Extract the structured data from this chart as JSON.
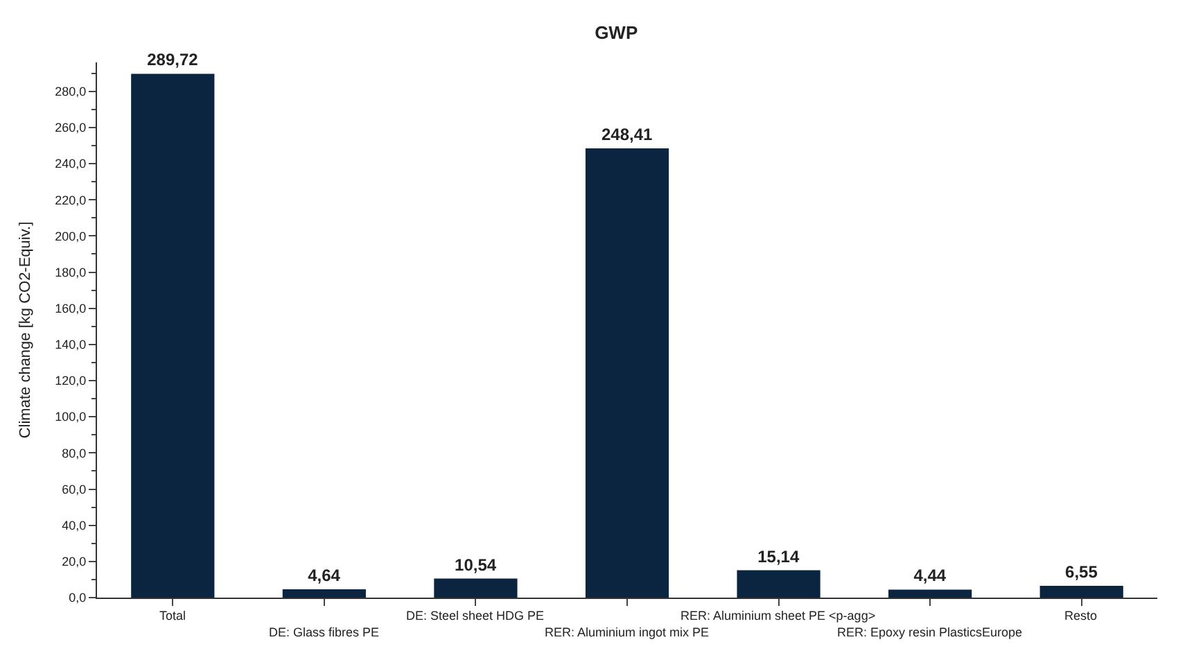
{
  "chart_data": {
    "type": "bar",
    "title": "GWP",
    "ylabel": "Climate change [kg CO2-Equiv.]",
    "categories": [
      "Total",
      "DE: Glass fibres PE",
      "DE: Steel sheet HDG PE",
      "RER: Aluminium ingot mix PE",
      "RER: Aluminium sheet PE <p-agg>",
      "RER: Epoxy resin PlasticsEurope",
      "Resto"
    ],
    "values": [
      289.72,
      4.64,
      10.54,
      248.41,
      15.14,
      4.44,
      6.55
    ],
    "value_labels": [
      "289,72",
      "4,64",
      "10,54",
      "248,41",
      "15,14",
      "4,44",
      "6,55"
    ],
    "color": "#0b2440",
    "ylim": [
      0,
      296
    ],
    "yticks": [
      {
        "value": 0,
        "label": "0,0"
      },
      {
        "value": 20,
        "label": "20,0"
      },
      {
        "value": 40,
        "label": "40,0"
      },
      {
        "value": 60,
        "label": "60,0"
      },
      {
        "value": 80,
        "label": "80,0"
      },
      {
        "value": 100,
        "label": "100,0"
      },
      {
        "value": 120,
        "label": "120,0"
      },
      {
        "value": 140,
        "label": "140,0"
      },
      {
        "value": 160,
        "label": "160,0"
      },
      {
        "value": 180,
        "label": "180,0"
      },
      {
        "value": 200,
        "label": "200,0"
      },
      {
        "value": 220,
        "label": "220,0"
      },
      {
        "value": 240,
        "label": "240,0"
      },
      {
        "value": 260,
        "label": "260,0"
      },
      {
        "value": 280,
        "label": "280,0"
      }
    ],
    "legend": false
  }
}
